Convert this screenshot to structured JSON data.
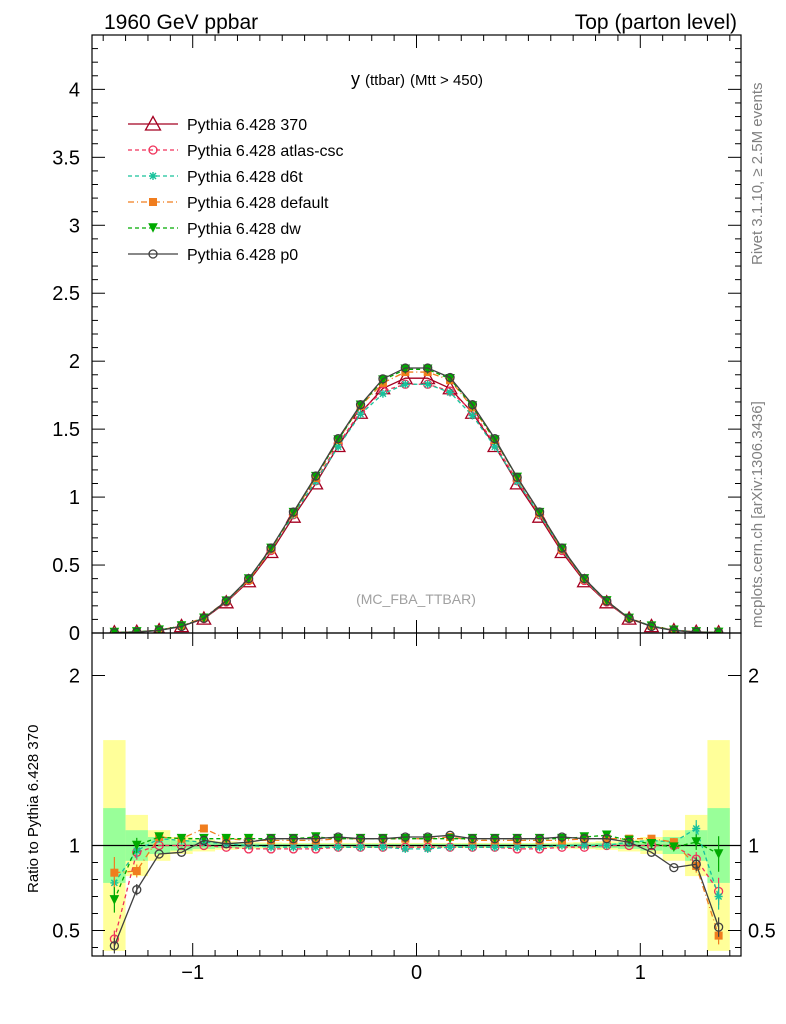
{
  "header": {
    "left": "1960 GeV ppbar",
    "right": "Top (parton level)"
  },
  "side_labels": {
    "rivet": "Rivet 3.1.10, ≥ 2.5M events",
    "mcplots": "mcplots.cern.ch [arXiv:1306.3436]"
  },
  "chart_data": [
    {
      "type": "line",
      "panel": "main",
      "title_main": "y",
      "title_sub": "(ttbar)",
      "title_rest": "(Mtt > 450)",
      "watermark": "(MC_FBA_TTBAR)",
      "xlim": [
        -1.45,
        1.45
      ],
      "ylim": [
        0,
        4.4
      ],
      "yticks": [
        "0",
        "0.5",
        "1",
        "1.5",
        "2",
        "2.5",
        "3",
        "3.5",
        "4"
      ],
      "x": [
        -1.35,
        -1.25,
        -1.15,
        -1.05,
        -0.95,
        -0.85,
        -0.75,
        -0.65,
        -0.55,
        -0.45,
        -0.35,
        -0.25,
        -0.15,
        -0.05,
        0.05,
        0.15,
        0.25,
        0.35,
        0.45,
        0.55,
        0.65,
        0.75,
        0.85,
        0.95,
        1.05,
        1.15,
        1.25,
        1.35
      ],
      "series": [
        {
          "name": "Pythia 6.428 370",
          "color": "#a50021",
          "dash": "",
          "marker": "triangle-open",
          "values": [
            0.004,
            0.008,
            0.02,
            0.05,
            0.105,
            0.225,
            0.38,
            0.595,
            0.855,
            1.1,
            1.375,
            1.62,
            1.8,
            1.875,
            1.875,
            1.8,
            1.62,
            1.375,
            1.1,
            0.855,
            0.595,
            0.38,
            0.225,
            0.105,
            0.05,
            0.02,
            0.008,
            0.004
          ]
        },
        {
          "name": "Pythia 6.428 atlas-csc",
          "color": "#f0325a",
          "dash": "4,3",
          "marker": "circle-open",
          "values": [
            0.002,
            0.007,
            0.02,
            0.05,
            0.106,
            0.228,
            0.387,
            0.607,
            0.87,
            1.12,
            1.39,
            1.63,
            1.78,
            1.83,
            1.83,
            1.78,
            1.63,
            1.39,
            1.12,
            0.87,
            0.607,
            0.387,
            0.228,
            0.106,
            0.05,
            0.02,
            0.007,
            0.003
          ]
        },
        {
          "name": "Pythia 6.428 d6t",
          "color": "#17c29b",
          "dash": "4,3",
          "marker": "star",
          "values": [
            0.003,
            0.008,
            0.021,
            0.052,
            0.108,
            0.232,
            0.392,
            0.612,
            0.87,
            1.115,
            1.37,
            1.61,
            1.76,
            1.83,
            1.83,
            1.77,
            1.6,
            1.37,
            1.115,
            0.87,
            0.612,
            0.392,
            0.232,
            0.108,
            0.052,
            0.021,
            0.009,
            0.003
          ]
        },
        {
          "name": "Pythia 6.428 default",
          "color": "#f07d1e",
          "dash": "6,3,1,3",
          "marker": "square",
          "values": [
            0.0034,
            0.0068,
            0.021,
            0.052,
            0.114,
            0.235,
            0.39,
            0.615,
            0.88,
            1.14,
            1.42,
            1.67,
            1.84,
            1.92,
            1.92,
            1.86,
            1.66,
            1.42,
            1.14,
            0.88,
            0.615,
            0.395,
            0.235,
            0.11,
            0.052,
            0.021,
            0.007,
            0.002
          ]
        },
        {
          "name": "Pythia 6.428 dw",
          "color": "#00aa00",
          "dash": "4,3",
          "marker": "triangle-down",
          "values": [
            0.003,
            0.008,
            0.021,
            0.051,
            0.108,
            0.234,
            0.397,
            0.622,
            0.885,
            1.15,
            1.42,
            1.675,
            1.86,
            1.94,
            1.94,
            1.87,
            1.67,
            1.42,
            1.145,
            0.885,
            0.622,
            0.398,
            0.236,
            0.107,
            0.05,
            0.02,
            0.0075,
            0.004
          ]
        },
        {
          "name": "Pythia 6.428 p0",
          "color": "#404040",
          "dash": "",
          "marker": "circle-open",
          "values": [
            0.0016,
            0.0059,
            0.019,
            0.048,
            0.108,
            0.235,
            0.4,
            0.625,
            0.89,
            1.155,
            1.43,
            1.68,
            1.87,
            1.95,
            1.95,
            1.88,
            1.68,
            1.43,
            1.145,
            0.89,
            0.625,
            0.4,
            0.235,
            0.108,
            0.048,
            0.0174,
            0.007,
            0.0021
          ]
        }
      ]
    },
    {
      "type": "line",
      "panel": "ratio",
      "ylabel": "Ratio to Pythia 6.428 370",
      "xlim": [
        -1.45,
        1.45
      ],
      "ylim": [
        0.35,
        2.25
      ],
      "xticks": [
        "−1",
        "0",
        "1"
      ],
      "yticks": [
        "0.5",
        "1",
        "2"
      ],
      "x": [
        -1.35,
        -1.25,
        -1.15,
        -1.05,
        -0.95,
        -0.85,
        -0.75,
        -0.65,
        -0.55,
        -0.45,
        -0.35,
        -0.25,
        -0.15,
        -0.05,
        0.05,
        0.15,
        0.25,
        0.35,
        0.45,
        0.55,
        0.65,
        0.75,
        0.85,
        0.95,
        1.05,
        1.15,
        1.25,
        1.35
      ],
      "band_inner": [
        0.22,
        0.09,
        0.05,
        0.03,
        0.02,
        0.015,
        0.012,
        0.01,
        0.01,
        0.01,
        0.01,
        0.01,
        0.01,
        0.01,
        0.01,
        0.01,
        0.01,
        0.01,
        0.01,
        0.01,
        0.01,
        0.012,
        0.015,
        0.02,
        0.03,
        0.05,
        0.09,
        0.22
      ],
      "band_outer": [
        0.62,
        0.18,
        0.09,
        0.05,
        0.035,
        0.025,
        0.02,
        0.018,
        0.015,
        0.015,
        0.015,
        0.015,
        0.015,
        0.015,
        0.015,
        0.015,
        0.015,
        0.015,
        0.015,
        0.015,
        0.018,
        0.02,
        0.025,
        0.035,
        0.05,
        0.09,
        0.18,
        0.62
      ],
      "series": [
        {
          "name": "Pythia 6.428 atlas-csc",
          "color": "#f0325a",
          "dash": "4,3",
          "marker": "circle-open",
          "values": [
            0.45,
            0.96,
            1.0,
            1.0,
            1.0,
            0.99,
            0.98,
            0.98,
            0.98,
            0.98,
            0.99,
            0.99,
            0.99,
            0.99,
            0.99,
            0.99,
            0.99,
            0.99,
            0.98,
            0.98,
            0.99,
            0.99,
            1.0,
            1.0,
            1.0,
            1.0,
            0.92,
            0.73
          ]
        },
        {
          "name": "Pythia 6.428 d6t",
          "color": "#17c29b",
          "dash": "4,3",
          "marker": "star",
          "values": [
            0.78,
            0.97,
            1.04,
            1.03,
            1.02,
            1.01,
            1.0,
            0.99,
            0.99,
            0.99,
            0.99,
            0.99,
            0.99,
            0.98,
            0.98,
            0.99,
            0.99,
            0.99,
            0.99,
            0.99,
            1.0,
            1.0,
            1.0,
            1.02,
            1.03,
            1.02,
            1.1,
            0.7
          ]
        },
        {
          "name": "Pythia 6.428 default",
          "color": "#f07d1e",
          "dash": "6,3,1,3",
          "marker": "square",
          "values": [
            0.84,
            0.85,
            1.05,
            1.04,
            1.1,
            1.04,
            1.03,
            1.03,
            1.03,
            1.03,
            1.04,
            1.04,
            1.04,
            1.04,
            1.04,
            1.05,
            1.03,
            1.03,
            1.03,
            1.03,
            1.03,
            1.04,
            1.04,
            1.04,
            1.04,
            1.02,
            0.88,
            0.47
          ]
        },
        {
          "name": "Pythia 6.428 dw",
          "color": "#00aa00",
          "dash": "4,3",
          "marker": "triangle-down",
          "values": [
            0.68,
            1.0,
            1.05,
            1.04,
            1.04,
            1.04,
            1.04,
            1.04,
            1.04,
            1.05,
            1.04,
            1.04,
            1.04,
            1.04,
            1.04,
            1.04,
            1.04,
            1.04,
            1.04,
            1.04,
            1.04,
            1.05,
            1.06,
            1.03,
            1.01,
            0.99,
            1.02,
            0.95
          ]
        },
        {
          "name": "Pythia 6.428 p0",
          "color": "#404040",
          "dash": "",
          "marker": "circle-open",
          "values": [
            0.41,
            0.74,
            0.95,
            0.96,
            1.03,
            1.01,
            1.02,
            1.04,
            1.04,
            1.04,
            1.05,
            1.04,
            1.04,
            1.05,
            1.05,
            1.06,
            1.04,
            1.04,
            1.04,
            1.04,
            1.05,
            1.04,
            1.04,
            1.02,
            0.96,
            0.87,
            0.89,
            0.52
          ]
        }
      ]
    }
  ]
}
